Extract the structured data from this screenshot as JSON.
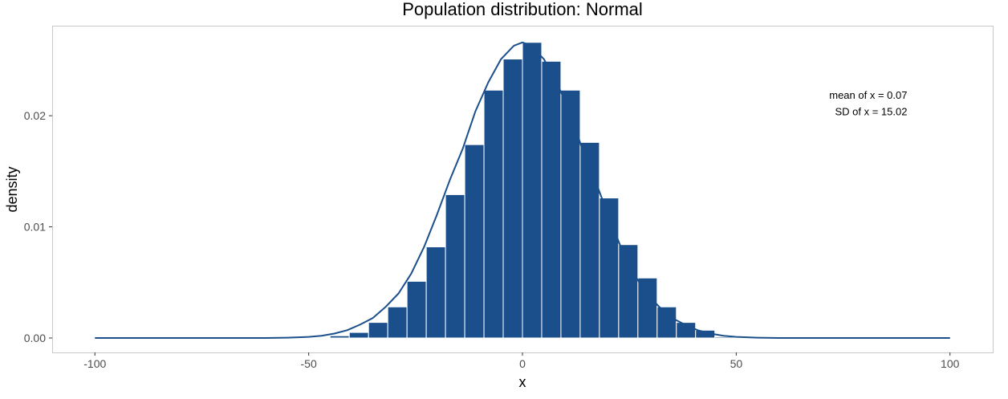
{
  "chart_data": {
    "type": "bar",
    "title": "Population distribution: Normal",
    "xlabel": "x",
    "ylabel": "density",
    "xlim": [
      -110,
      110
    ],
    "ylim": [
      -0.0013,
      0.0281
    ],
    "x_ticks": [
      -100,
      -50,
      0,
      50,
      100
    ],
    "x_tick_labels": [
      "-100",
      "-50",
      "0",
      "50",
      "100"
    ],
    "y_ticks": [
      0,
      0.01,
      0.02
    ],
    "y_tick_labels": [
      "0.00",
      "0.01",
      "0.02"
    ],
    "grid": false,
    "bar_color": "#1b4f8c",
    "bar_edge_color": "#ffffff",
    "line_color": "#1b4f8c",
    "bin_width": 4.5,
    "bins": [
      {
        "x0": -45.0,
        "x1": -40.5,
        "density": 0.0002
      },
      {
        "x0": -40.5,
        "x1": -36.0,
        "density": 0.0005
      },
      {
        "x0": -36.0,
        "x1": -31.5,
        "density": 0.0014
      },
      {
        "x0": -31.5,
        "x1": -27.0,
        "density": 0.0028
      },
      {
        "x0": -27.0,
        "x1": -22.5,
        "density": 0.0051
      },
      {
        "x0": -22.5,
        "x1": -18.0,
        "density": 0.0082
      },
      {
        "x0": -18.0,
        "x1": -13.5,
        "density": 0.0129
      },
      {
        "x0": -13.5,
        "x1": -9.0,
        "density": 0.0174
      },
      {
        "x0": -9.0,
        "x1": -4.5,
        "density": 0.0223
      },
      {
        "x0": -4.5,
        "x1": 0.0,
        "density": 0.0251
      },
      {
        "x0": 0.0,
        "x1": 4.5,
        "density": 0.0266
      },
      {
        "x0": 4.5,
        "x1": 9.0,
        "density": 0.0249
      },
      {
        "x0": 9.0,
        "x1": 13.5,
        "density": 0.0223
      },
      {
        "x0": 13.5,
        "x1": 18.0,
        "density": 0.0176
      },
      {
        "x0": 18.0,
        "x1": 22.5,
        "density": 0.0126
      },
      {
        "x0": 22.5,
        "x1": 27.0,
        "density": 0.0084
      },
      {
        "x0": 27.0,
        "x1": 31.5,
        "density": 0.0054
      },
      {
        "x0": 31.5,
        "x1": 36.0,
        "density": 0.0028
      },
      {
        "x0": 36.0,
        "x1": 40.5,
        "density": 0.0014
      },
      {
        "x0": 40.5,
        "x1": 45.0,
        "density": 0.0007
      },
      {
        "x0": 45.0,
        "x1": 49.5,
        "density": 0.0001
      }
    ],
    "density_curve": {
      "x": [
        -100,
        -60,
        -55,
        -50,
        -47,
        -44,
        -41,
        -38,
        -35,
        -32,
        -29,
        -26,
        -23,
        -20,
        -17,
        -14,
        -11,
        -8,
        -5,
        -2,
        0,
        2,
        5,
        8,
        11,
        14,
        17,
        20,
        23,
        26,
        29,
        32,
        35,
        38,
        41,
        44,
        47,
        50,
        55,
        60,
        100
      ],
      "y": [
        0,
        0,
        3e-05,
        0.0001,
        0.0002,
        0.0004,
        0.0007,
        0.0012,
        0.0018,
        0.0028,
        0.004,
        0.0058,
        0.0082,
        0.0111,
        0.0142,
        0.017,
        0.0204,
        0.023,
        0.0251,
        0.0263,
        0.0266,
        0.0263,
        0.0251,
        0.023,
        0.0204,
        0.017,
        0.0142,
        0.0111,
        0.0082,
        0.0058,
        0.004,
        0.0028,
        0.0018,
        0.0012,
        0.0007,
        0.0004,
        0.0002,
        0.0001,
        3e-05,
        0,
        0
      ]
    },
    "annotations": [
      {
        "text": "mean of x = 0.07",
        "x": 90,
        "y": 0.0219
      },
      {
        "text": "SD of x = 15.02",
        "x": 90,
        "y": 0.0204
      }
    ]
  }
}
